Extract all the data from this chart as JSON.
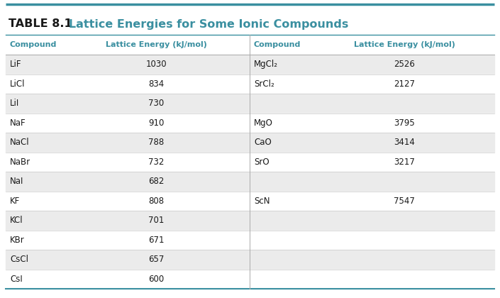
{
  "title_bold": "TABLE 8.1",
  "title_rest": "   Lattice Energies for Some Ionic Compounds",
  "teal_color": "#3a8fa0",
  "dark_color": "#1a1a1a",
  "bg_color": "#ffffff",
  "row_alt_color": "#ebebeb",
  "row_white_color": "#ffffff",
  "header_row_color": "#ffffff",
  "left_headers": [
    "Compound",
    "Lattice Energy (kJ/mol)"
  ],
  "right_headers": [
    "Compound",
    "Lattice Energy (kJ/mol)"
  ],
  "left_rows": [
    [
      "LiF",
      "1030"
    ],
    [
      "LiCl",
      "834"
    ],
    [
      "LiI",
      "730"
    ],
    [
      "NaF",
      "910"
    ],
    [
      "NaCl",
      "788"
    ],
    [
      "NaBr",
      "732"
    ],
    [
      "NaI",
      "682"
    ],
    [
      "KF",
      "808"
    ],
    [
      "KCl",
      "701"
    ],
    [
      "KBr",
      "671"
    ],
    [
      "CsCl",
      "657"
    ],
    [
      "CsI",
      "600"
    ]
  ],
  "right_rows": [
    [
      "MgCl₂",
      "2526"
    ],
    [
      "SrCl₂",
      "2127"
    ],
    [
      "",
      ""
    ],
    [
      "MgO",
      "3795"
    ],
    [
      "CaO",
      "3414"
    ],
    [
      "SrO",
      "3217"
    ],
    [
      "",
      ""
    ],
    [
      "ScN",
      "7547"
    ],
    [
      "",
      ""
    ],
    [
      "",
      ""
    ],
    [
      "",
      ""
    ],
    [
      "",
      ""
    ]
  ]
}
